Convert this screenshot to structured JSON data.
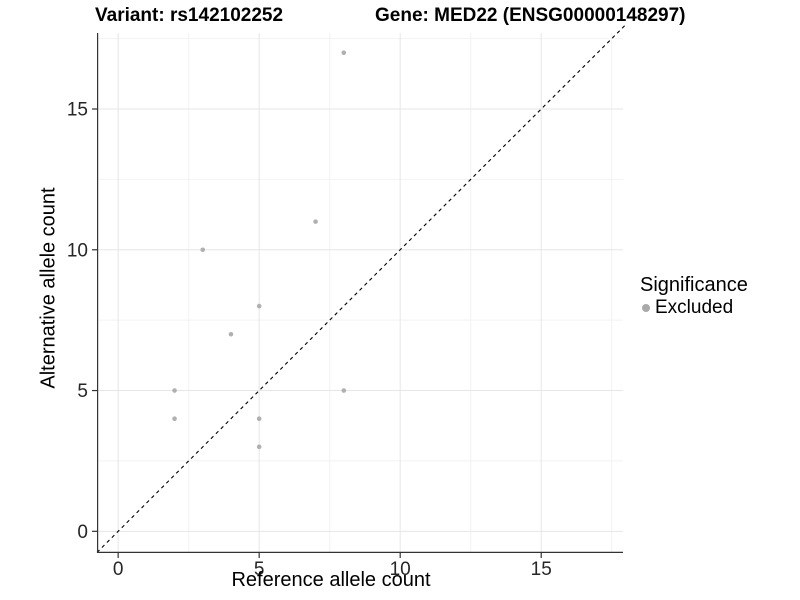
{
  "chart_data": {
    "type": "scatter",
    "title_variant": "Variant: rs142102252",
    "title_gene": "Gene: MED22 (ENSG00000148297)",
    "xlabel": "Reference allele count",
    "ylabel": "Alternative allele count",
    "xlim": [
      -0.75,
      17.9
    ],
    "ylim": [
      -0.77,
      17.7
    ],
    "x_major_ticks": [
      0,
      5,
      10,
      15
    ],
    "y_major_ticks": [
      0,
      5,
      10,
      15
    ],
    "x_minor_gridlines": [
      2.5,
      7.5,
      12.5,
      17.5
    ],
    "y_minor_gridlines": [
      2.5,
      7.5,
      12.5,
      17.5
    ],
    "grid": "on",
    "identity_line": {
      "equation": "y = x",
      "style": "dashed",
      "color": "#000000"
    },
    "series": [
      {
        "name": "Excluded",
        "color": "#b0b0b0",
        "points": [
          {
            "x": 2,
            "y": 4
          },
          {
            "x": 2,
            "y": 5
          },
          {
            "x": 3,
            "y": 10
          },
          {
            "x": 4,
            "y": 7
          },
          {
            "x": 5,
            "y": 3
          },
          {
            "x": 5,
            "y": 4
          },
          {
            "x": 5,
            "y": 8
          },
          {
            "x": 7,
            "y": 11
          },
          {
            "x": 8,
            "y": 5
          },
          {
            "x": 8,
            "y": 17
          }
        ]
      }
    ],
    "legend": {
      "title": "Significance",
      "position": "right",
      "items": [
        {
          "label": "Excluded",
          "color": "#a9a9a9",
          "marker": "circle"
        }
      ]
    }
  },
  "colors": {
    "grid_major": "#e6e6e6",
    "grid_minor": "#f2f2f2",
    "axis_line": "#333333",
    "tick_mark": "#333333",
    "axis_text": "#262626",
    "title_text": "#000000",
    "background": "#ffffff"
  }
}
